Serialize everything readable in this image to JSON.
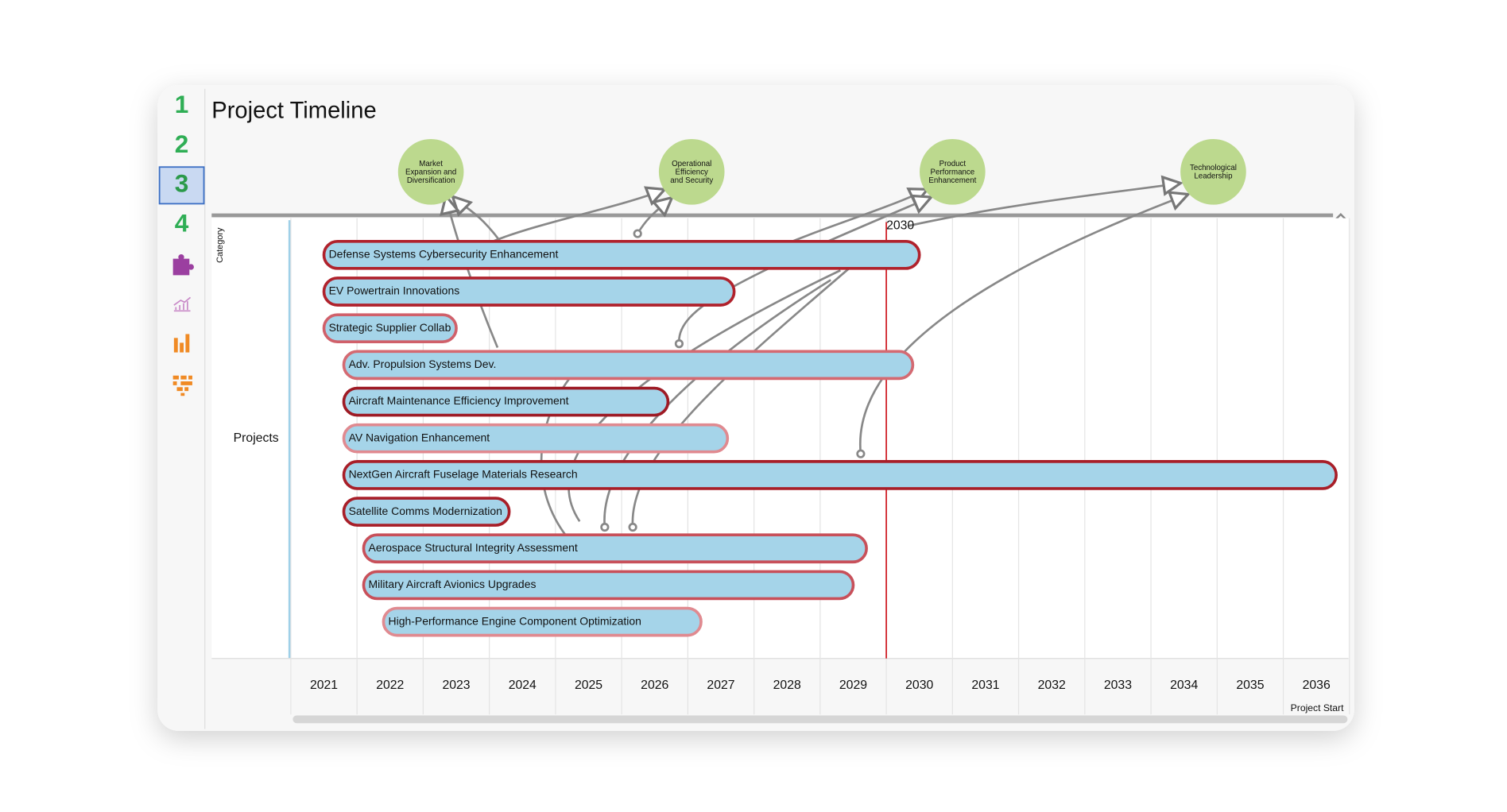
{
  "sidebar": {
    "steps": [
      "1",
      "2",
      "3",
      "4"
    ],
    "active": 2
  },
  "header": {
    "title": "Project Timeline"
  },
  "goals": [
    "Market Expansion and Diversification",
    "Operational Efficiency and Security",
    "Product Performance Enhancement",
    "Technological Leadership"
  ],
  "timeline": {
    "category_label": "Category",
    "row_label": "Projects",
    "axis_note": "Project Start",
    "years": [
      2021,
      2022,
      2023,
      2024,
      2025,
      2026,
      2027,
      2028,
      2029,
      2030,
      2031,
      2032,
      2033,
      2034,
      2035,
      2036
    ],
    "marker": 2030,
    "projects": [
      {
        "name": "Defense Systems Cybersecurity Enhancement",
        "start": 2021.5,
        "end": 2030.5,
        "border": "#b0222c"
      },
      {
        "name": "EV Powertrain Innovations",
        "start": 2021.5,
        "end": 2027.7,
        "border": "#b0222c"
      },
      {
        "name": "Strategic Supplier Collab",
        "start": 2021.5,
        "end": 2023.5,
        "border": "#d0606a"
      },
      {
        "name": "Adv. Propulsion Systems Dev.",
        "start": 2021.8,
        "end": 2030.4,
        "border": "#d46a72"
      },
      {
        "name": "Aircraft Maintenance Efficiency Improvement",
        "start": 2021.8,
        "end": 2026.7,
        "border": "#9e1a24"
      },
      {
        "name": "AV Navigation Enhancement",
        "start": 2021.8,
        "end": 2027.6,
        "border": "#e08a90"
      },
      {
        "name": "NextGen Aircraft Fuselage Materials Research",
        "start": 2021.8,
        "end": 2036.8,
        "border": "#a81e28"
      },
      {
        "name": "Satellite Comms Modernization",
        "start": 2021.8,
        "end": 2024.3,
        "border": "#a81e28"
      },
      {
        "name": "Aerospace Structural Integrity Assessment",
        "start": 2022.1,
        "end": 2029.7,
        "border": "#c8505a"
      },
      {
        "name": "Military Aircraft Avionics Upgrades",
        "start": 2022.1,
        "end": 2029.5,
        "border": "#c8505a"
      },
      {
        "name": "High-Performance Engine Component Optimization",
        "start": 2022.4,
        "end": 2027.2,
        "border": "#e08a90"
      }
    ]
  }
}
